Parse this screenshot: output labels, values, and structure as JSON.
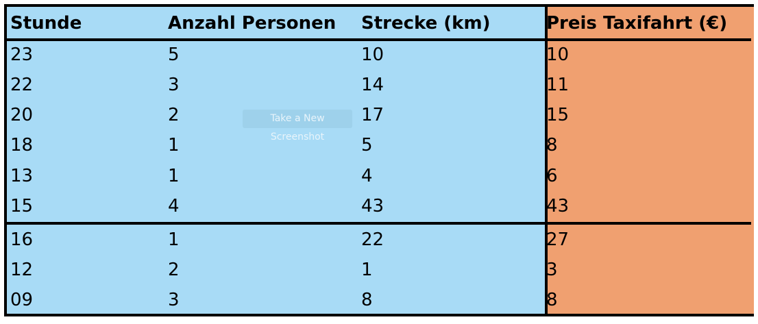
{
  "table": {
    "headers": [
      "Stunde",
      "Anzahl Personen",
      "Strecke (km)",
      "Preis Taxifahrt (€)"
    ],
    "rows": [
      [
        "23",
        "5",
        "10",
        "10"
      ],
      [
        "22",
        "3",
        "14",
        "11"
      ],
      [
        "20",
        "2",
        "17",
        "15"
      ],
      [
        "18",
        "1",
        "5",
        "8"
      ],
      [
        "13",
        "1",
        "4",
        "6"
      ],
      [
        "15",
        "4",
        "43",
        "43"
      ],
      [
        "16",
        "1",
        "22",
        "27"
      ],
      [
        "12",
        "2",
        "1",
        "3"
      ],
      [
        "09",
        "3",
        "8",
        "8"
      ]
    ]
  },
  "overlay": {
    "button_label": "Take a New Screenshot"
  },
  "colors": {
    "feature_columns": "#a8dbf6",
    "target_column": "#f0a070"
  }
}
